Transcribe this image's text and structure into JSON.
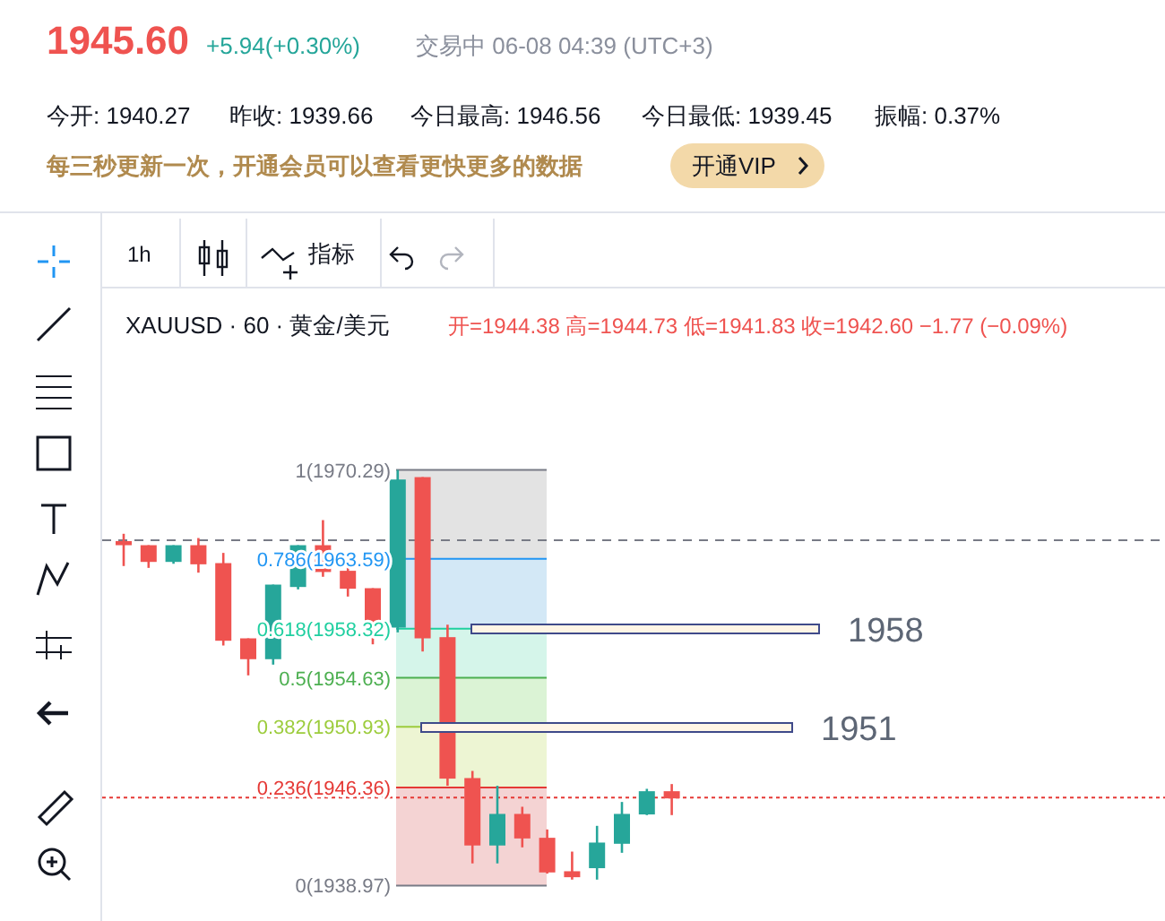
{
  "chart_data": {
    "type": "candlestick",
    "title": "XAUUSD · 60 · 黄金/美元",
    "subtitle": "开=1944.38 高=1944.73 低=1941.83 收=1942.60 −1.77 (−0.09%)",
    "categories": [
      null,
      null,
      null,
      null,
      null,
      null,
      null,
      null,
      null,
      null,
      null,
      null,
      null,
      null,
      null,
      null,
      null,
      null,
      null,
      null,
      null,
      null,
      null
    ],
    "ohlc": [
      [
        1964.93,
        1965.48,
        1963.05,
        1964.62
      ],
      [
        1964.62,
        1964.62,
        1962.91,
        1963.36
      ],
      [
        1963.36,
        1964.62,
        1963.22,
        1964.62
      ],
      [
        1964.62,
        1965.16,
        1962.55,
        1963.18
      ],
      [
        1963.27,
        1964.04,
        1957.06,
        1957.42
      ],
      [
        1957.6,
        1957.6,
        1954.81,
        1956.03
      ],
      [
        1956.03,
        1961.65,
        1955.62,
        1961.65
      ],
      [
        1961.47,
        1964.62,
        1961.29,
        1964.62
      ],
      [
        1964.62,
        1966.51,
        1962.24,
        1962.6
      ],
      [
        1962.69,
        1963.36,
        1960.75,
        1961.34
      ],
      [
        1961.38,
        1961.38,
        1957.15,
        1958.59
      ],
      [
        1958.41,
        1970.29,
        1958.05,
        1969.57
      ],
      [
        1969.75,
        1969.75,
        1956.61,
        1957.6
      ],
      [
        1957.69,
        1958.63,
        1946.49,
        1947.03
      ],
      [
        1947.07,
        1947.61,
        1940.64,
        1941.99
      ],
      [
        1941.99,
        1946.49,
        1940.64,
        1944.37
      ],
      [
        1944.37,
        1944.91,
        1941.85,
        1942.52
      ],
      [
        1942.57,
        1943.2,
        1939.87,
        1939.96
      ],
      [
        1940.05,
        1941.53,
        1939.42,
        1939.6
      ],
      [
        1940.28,
        1943.47,
        1939.42,
        1942.21
      ],
      [
        1942.12,
        1945.27,
        1941.44,
        1944.37
      ],
      [
        1944.33,
        1946.26,
        1944.28,
        1946.08
      ],
      [
        1946.08,
        1946.62,
        1944.28,
        1945.54
      ]
    ],
    "colors": [
      "#ef5350",
      "#ef5350",
      "#26a69a",
      "#ef5350",
      "#ef5350",
      "#ef5350",
      "#26a69a",
      "#26a69a",
      "#ef5350",
      "#ef5350",
      "#ef5350",
      "#26a69a",
      "#ef5350",
      "#ef5350",
      "#ef5350",
      "#26a69a",
      "#ef5350",
      "#ef5350",
      "#ef5350",
      "#26a69a",
      "#26a69a",
      "#26a69a",
      "#ef5350"
    ],
    "ylim": [
      1936.3,
      1984.1
    ],
    "ref_lines": [
      {
        "axis": "y",
        "value": 1970.29,
        "label": "1(1970.29)",
        "color": "#787b86",
        "line_style": "solid"
      },
      {
        "axis": "y",
        "value": 1963.59,
        "label": "0.786(1963.59)",
        "color": "#2196f3",
        "line_style": "solid"
      },
      {
        "axis": "y",
        "value": 1958.32,
        "label": "0.618(1958.32)",
        "color": "#1fcfa0",
        "line_style": "solid"
      },
      {
        "axis": "y",
        "value": 1954.63,
        "label": "0.5(1954.63)",
        "color": "#4caf50",
        "line_style": "solid"
      },
      {
        "axis": "y",
        "value": 1950.93,
        "label": "0.382(1950.93)",
        "color": "#9ccc3c",
        "line_style": "solid"
      },
      {
        "axis": "y",
        "value": 1946.36,
        "label": "0.236(1946.36)",
        "color": "#e53935",
        "line_style": "solid"
      },
      {
        "axis": "y",
        "value": 1938.97,
        "label": "0(1938.97)",
        "color": "#787b86",
        "line_style": "solid"
      },
      {
        "axis": "y",
        "value": 1965.0,
        "color": "#787b86",
        "line_style": "dashed"
      },
      {
        "axis": "y",
        "value": 1945.6,
        "color": "#e53935",
        "line_style": "dotted"
      }
    ],
    "bands": [
      {
        "axis": "y",
        "from": 1963.59,
        "to": 1970.29,
        "color": "#e3e3e3"
      },
      {
        "axis": "y",
        "from": 1958.32,
        "to": 1963.59,
        "color": "#d3e8f6"
      },
      {
        "axis": "y",
        "from": 1954.63,
        "to": 1958.32,
        "color": "#d5f5ea"
      },
      {
        "axis": "y",
        "from": 1950.93,
        "to": 1954.63,
        "color": "#dbf3d5"
      },
      {
        "axis": "y",
        "from": 1946.36,
        "to": 1950.93,
        "color": "#edf5d3"
      },
      {
        "axis": "y",
        "from": 1938.97,
        "to": 1946.36,
        "color": "#f4d3d3"
      }
    ],
    "annotations": [
      "1945.60",
      "+5.94(+0.30%)",
      "交易中 06-08 04:39 (UTC+3)",
      "今开: 1940.27",
      "昨收: 1939.66",
      "今日最高: 1946.56",
      "今日最低: 1939.45",
      "振幅: 0.37%",
      "每三秒更新一次，开通会员可以查看更快更多的数据",
      "开通VIP",
      "1h",
      "指标",
      "1958",
      "1951"
    ]
  }
}
